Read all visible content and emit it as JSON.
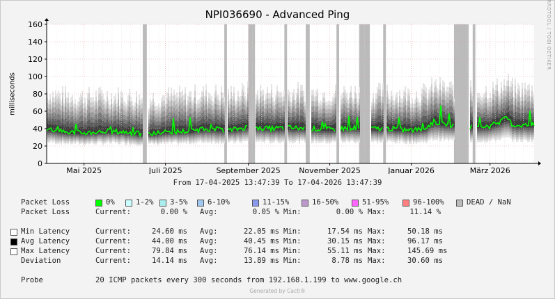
{
  "chart_data": {
    "type": "area",
    "title": "NPI036690 - Advanced Ping",
    "ylabel": "milliseconds",
    "ylim": [
      0,
      160
    ],
    "yticks": [
      0,
      20,
      40,
      60,
      80,
      100,
      120,
      140,
      160
    ],
    "xlim": [
      "2025-04-17",
      "2026-04-17"
    ],
    "x_tick_labels": [
      {
        "label": "Mai 2025",
        "date": "2025-05-15"
      },
      {
        "label": "Juli 2025",
        "date": "2025-07-15"
      },
      {
        "label": "September 2025",
        "date": "2025-09-15"
      },
      {
        "label": "November 2025",
        "date": "2025-11-15"
      },
      {
        "label": "Januar 2026",
        "date": "2026-01-15"
      },
      {
        "label": "März 2026",
        "date": "2026-03-15"
      }
    ],
    "grid": true,
    "dead_periods": [
      [
        "2025-06-28",
        "2025-07-01"
      ],
      [
        "2025-08-28",
        "2025-08-30"
      ],
      [
        "2025-09-15",
        "2025-09-20"
      ],
      [
        "2025-10-12",
        "2025-10-14"
      ],
      [
        "2025-10-28",
        "2025-10-31"
      ],
      [
        "2025-11-20",
        "2025-11-22"
      ],
      [
        "2025-12-07",
        "2025-12-15"
      ],
      [
        "2025-12-25",
        "2025-12-27"
      ],
      [
        "2026-02-16",
        "2026-02-27"
      ],
      [
        "2026-03-02",
        "2026-03-04"
      ]
    ],
    "series": [
      {
        "name": "Avg Latency",
        "color": "#00ff00",
        "x": [
          "2025-04-17",
          "2025-05-01",
          "2025-05-15",
          "2025-06-01",
          "2025-06-15",
          "2025-07-01",
          "2025-07-15",
          "2025-08-01",
          "2025-08-15",
          "2025-09-01",
          "2025-09-15",
          "2025-10-01",
          "2025-10-15",
          "2025-11-01",
          "2025-11-15",
          "2025-12-01",
          "2025-12-15",
          "2026-01-01",
          "2026-01-15",
          "2026-01-25",
          "2026-02-01",
          "2026-02-10",
          "2026-03-01",
          "2026-03-15",
          "2026-03-28",
          "2026-04-01",
          "2026-04-17"
        ],
        "y": [
          40,
          36,
          35,
          37,
          36,
          33,
          36,
          37,
          40,
          38,
          42,
          40,
          41,
          40,
          39,
          41,
          40,
          40,
          38,
          40,
          48,
          45,
          42,
          43,
          52,
          44,
          44
        ]
      },
      {
        "name": "Max Latency",
        "typical": 79.84
      },
      {
        "name": "Min Latency",
        "typical": 24.6
      }
    ]
  },
  "legend": {
    "loss_row_label": "Packet Loss",
    "loss_buckets": [
      {
        "label": "0%",
        "color": "#00ff00"
      },
      {
        "label": "1-2%",
        "color": "#ccffff"
      },
      {
        "label": "3-5%",
        "color": "#aaeeee"
      },
      {
        "label": "6-10%",
        "color": "#a0c8f0"
      },
      {
        "label": "11-15%",
        "color": "#8899ee"
      },
      {
        "label": "16-50%",
        "color": "#bb99cc"
      },
      {
        "label": "51-95%",
        "color": "#ff66ff"
      },
      {
        "label": "96-100%",
        "color": "#ff8080"
      },
      {
        "label": "DEAD / NaN",
        "color": "#bbbbbb"
      }
    ],
    "loss_stats": {
      "label": "Packet Loss",
      "current": "0.00 %",
      "avg": "0.05 %",
      "min": "0.00 %",
      "max": "11.14 %"
    },
    "stat_rows": [
      {
        "label": "Min Latency",
        "swatch": "#ffffff",
        "current": "24.60 ms",
        "avg": "22.05 ms",
        "min": "17.54 ms",
        "max": "50.18 ms"
      },
      {
        "label": "Avg Latency",
        "swatch": "#000000",
        "current": "44.00 ms",
        "avg": "40.45 ms",
        "min": "30.15 ms",
        "max": "96.17 ms"
      },
      {
        "label": "Max Latency",
        "swatch": "#ffffff",
        "current": "79.84 ms",
        "avg": "76.14 ms",
        "min": "55.11 ms",
        "max": "145.69 ms"
      },
      {
        "label": "Deviation",
        "swatch": "",
        "current": "14.14 ms",
        "avg": "13.89 ms",
        "min": "8.78 ms",
        "max": "30.60 ms"
      }
    ],
    "labels": {
      "current": "Current:",
      "avg": "Avg:",
      "min": "Min:",
      "max": "Max:"
    },
    "probe_label": "Probe",
    "probe_text": "20 ICMP packets every 300 seconds from 192.168.1.199 to www.google.ch"
  },
  "period_text": "From 17-04-2025 13:47:39 To 17-04-2026 13:47:39",
  "watermark": "RRDTOOL / TOBI OETIKER",
  "footer": "Generated by Cacti®"
}
